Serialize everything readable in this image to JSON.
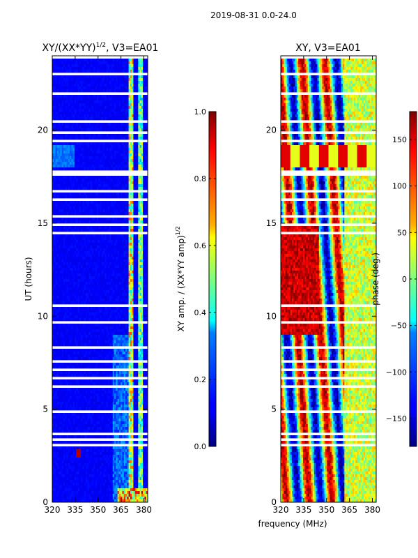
{
  "chart_data": {
    "type": "heatmap",
    "suptitle": "2019-08-31 0.0-24.0",
    "xlabel": "frequency (MHz)",
    "panels": [
      {
        "id": "left",
        "title_main": "XY/(XX*YY)",
        "title_sup": "1/2",
        "title_tail": ", V3=EA01",
        "ylabel": "UT (hours)",
        "xlim": [
          320,
          382.5
        ],
        "ylim": [
          0,
          24
        ],
        "xticks": [
          320,
          335,
          350,
          365,
          380
        ],
        "yticks": [
          0,
          5,
          10,
          15,
          20
        ],
        "colorbar": {
          "label_main": "XY amp. / (XX*YY amp)",
          "label_sup": "1/2",
          "range": [
            0.0,
            1.0
          ],
          "ticks": [
            "0.0",
            "0.2",
            "0.4",
            "0.6",
            "0.8",
            "1.0"
          ]
        }
      },
      {
        "id": "right",
        "title_main": "XY, V3=EA01",
        "title_sup": "",
        "title_tail": "",
        "ylabel": "",
        "xlim": [
          320,
          382.5
        ],
        "ylim": [
          0,
          24
        ],
        "xticks": [
          320,
          335,
          350,
          365,
          380
        ],
        "yticks": [
          0,
          5,
          10,
          15,
          20
        ],
        "colorbar": {
          "label_main": "phase (deg.)",
          "label_sup": "",
          "range": [
            -180,
            180
          ],
          "ticks": [
            "150",
            "100",
            "50",
            "0",
            "−50",
            "−100",
            "−150"
          ]
        }
      }
    ],
    "colormap": "jet",
    "flagged_time_ranges_hours": [
      [
        23.9,
        24
      ],
      [
        23.35,
        23.45
      ],
      [
        22.95,
        23.1
      ],
      [
        22.45,
        22.55
      ],
      [
        21.95,
        22.1
      ],
      [
        21.55,
        21.6
      ],
      [
        20.95,
        21.05
      ],
      [
        20.45,
        20.55
      ],
      [
        19.8,
        19.9
      ],
      [
        19.35,
        19.45
      ],
      [
        18.55,
        18.6
      ],
      [
        18.1,
        18.2
      ],
      [
        17.6,
        17.9
      ],
      [
        16.7,
        16.8
      ],
      [
        16.25,
        16.35
      ],
      [
        15.85,
        15.95
      ],
      [
        15.3,
        15.4
      ],
      [
        14.9,
        14.95
      ],
      [
        14.4,
        14.6
      ],
      [
        13.05,
        13.1
      ],
      [
        12.55,
        12.6
      ],
      [
        11.5,
        11.55
      ],
      [
        10.5,
        10.7
      ],
      [
        9.65,
        9.7
      ],
      [
        8.3,
        8.35
      ],
      [
        7.55,
        7.6
      ],
      [
        7.1,
        7.15
      ],
      [
        6.6,
        6.8
      ],
      [
        6.2,
        6.25
      ],
      [
        5.25,
        5.3
      ],
      [
        4.85,
        4.95
      ],
      [
        4.45,
        4.5
      ],
      [
        3.65,
        3.7
      ],
      [
        3.35,
        3.45
      ],
      [
        3.0,
        3.15
      ],
      [
        1.75,
        1.85
      ],
      [
        1.45,
        1.55
      ],
      [
        1.0,
        1.05
      ],
      [
        0.75,
        0.8
      ]
    ]
  }
}
